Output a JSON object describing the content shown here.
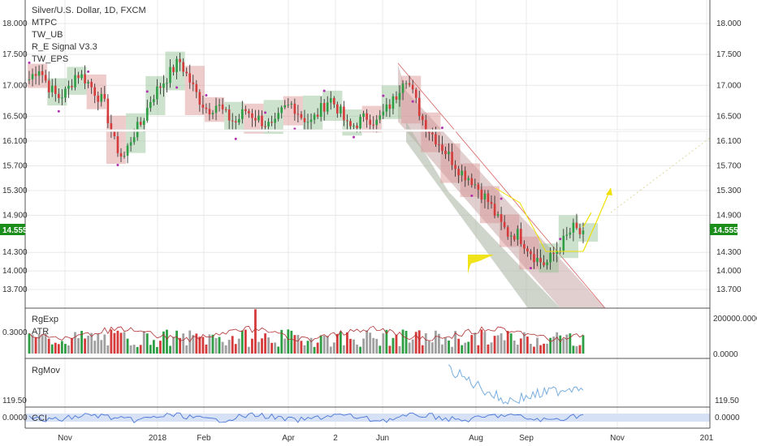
{
  "symbol": {
    "pair": "Silver/U.S. Dollar",
    "interval": "1D",
    "source": "FXCM"
  },
  "indicators": [
    "MTPC",
    "TW_UB",
    "R_E Signal V3.3",
    "TW_EPS"
  ],
  "panes": {
    "volume": {
      "labels": [
        "RgExp",
        "ATR"
      ],
      "left_value": "0.3000",
      "right_ticks": [
        "200000.0000",
        "0.0000"
      ]
    },
    "rgmov": {
      "label": "RgMov",
      "left_value": "119.50",
      "right_value": "119.50"
    },
    "cci": {
      "label": "CCI",
      "left_value": "0.0000",
      "right_value": "0.0000"
    }
  },
  "current_price": "14.555",
  "colors": {
    "up": "#2e9e45",
    "down": "#d63b3b",
    "line": "#cc4444",
    "level": "#ffffff",
    "channel": "#a9b3a0",
    "projection": "#f0e000",
    "rgmov": "#78aee0",
    "cci": "#4a76d6",
    "price_tag": "#1a8d1a"
  },
  "chart_data": {
    "type": "candlestick",
    "price_axis": [
      "18.000",
      "17.500",
      "17.000",
      "16.500",
      "16.100",
      "15.700",
      "15.300",
      "14.900",
      "14.555",
      "14.300",
      "14.000",
      "13.700"
    ],
    "horizontal_level": 16.1,
    "x_labels": [
      "Nov",
      "2018",
      "Feb",
      "Apr",
      "2",
      "Jun",
      "Aug",
      "Sep",
      "Nov",
      "201"
    ],
    "price_path": [
      17.1,
      17.3,
      17.0,
      16.8,
      16.9,
      17.2,
      17.1,
      16.9,
      16.7,
      16.1,
      15.8,
      16.2,
      16.4,
      16.8,
      17.0,
      17.2,
      17.4,
      17.1,
      16.8,
      16.6,
      16.7,
      16.5,
      16.4,
      16.6,
      16.5,
      16.4,
      16.3,
      16.6,
      16.7,
      16.5,
      16.4,
      16.6,
      16.8,
      16.6,
      16.3,
      16.4,
      16.5,
      16.4,
      16.6,
      16.8,
      17.2,
      16.8,
      16.4,
      16.2,
      16.0,
      15.8,
      15.6,
      15.5,
      15.3,
      15.1,
      14.8,
      14.6,
      14.6,
      14.4,
      14.2,
      14.1,
      14.3,
      14.5,
      14.7,
      14.55
    ]
  }
}
